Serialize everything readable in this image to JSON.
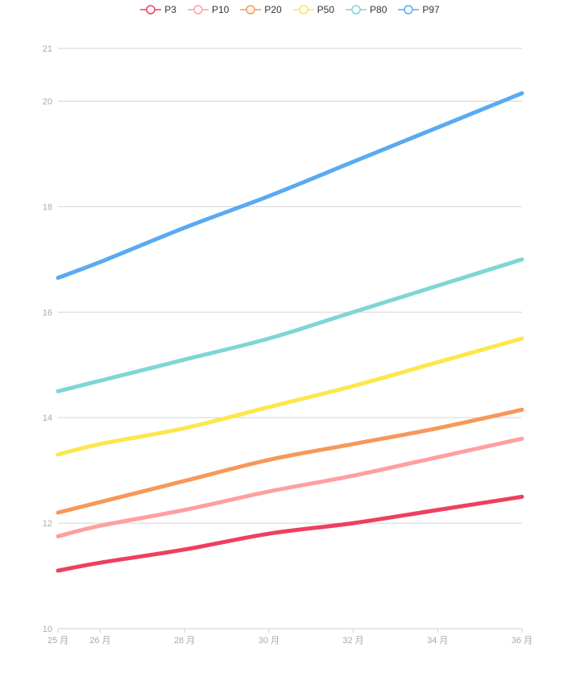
{
  "chart_data": {
    "type": "line",
    "title": "",
    "xlabel": "",
    "ylabel": "",
    "x": [
      25,
      26,
      28,
      30,
      32,
      34,
      36
    ],
    "x_tick_labels": [
      "25 月",
      "26 月",
      "28 月",
      "30 月",
      "32 月",
      "34 月",
      "36 月"
    ],
    "y_ticks": [
      "10",
      "12",
      "14",
      "16",
      "18",
      "20",
      "21"
    ],
    "xlim": [
      25,
      36
    ],
    "ylim": [
      10,
      21
    ],
    "grid": true,
    "legend_position": "top-center",
    "series": [
      {
        "name": "P3",
        "color": "#ee3f5f",
        "values": [
          11.1,
          11.25,
          11.5,
          11.8,
          12.0,
          12.25,
          12.5
        ]
      },
      {
        "name": "P10",
        "color": "#ff9f9f",
        "values": [
          11.75,
          11.95,
          12.25,
          12.6,
          12.9,
          13.25,
          13.6
        ]
      },
      {
        "name": "P20",
        "color": "#f7985a",
        "values": [
          12.2,
          12.4,
          12.8,
          13.2,
          13.5,
          13.8,
          14.15
        ]
      },
      {
        "name": "P50",
        "color": "#fde74c",
        "values": [
          13.3,
          13.5,
          13.8,
          14.2,
          14.6,
          15.05,
          15.5
        ]
      },
      {
        "name": "P80",
        "color": "#7fd6d3",
        "values": [
          14.5,
          14.7,
          15.1,
          15.5,
          16.0,
          16.5,
          17.0
        ]
      },
      {
        "name": "P97",
        "color": "#5aaaf2",
        "values": [
          16.65,
          16.95,
          17.6,
          18.2,
          18.85,
          19.5,
          20.15
        ]
      }
    ]
  }
}
